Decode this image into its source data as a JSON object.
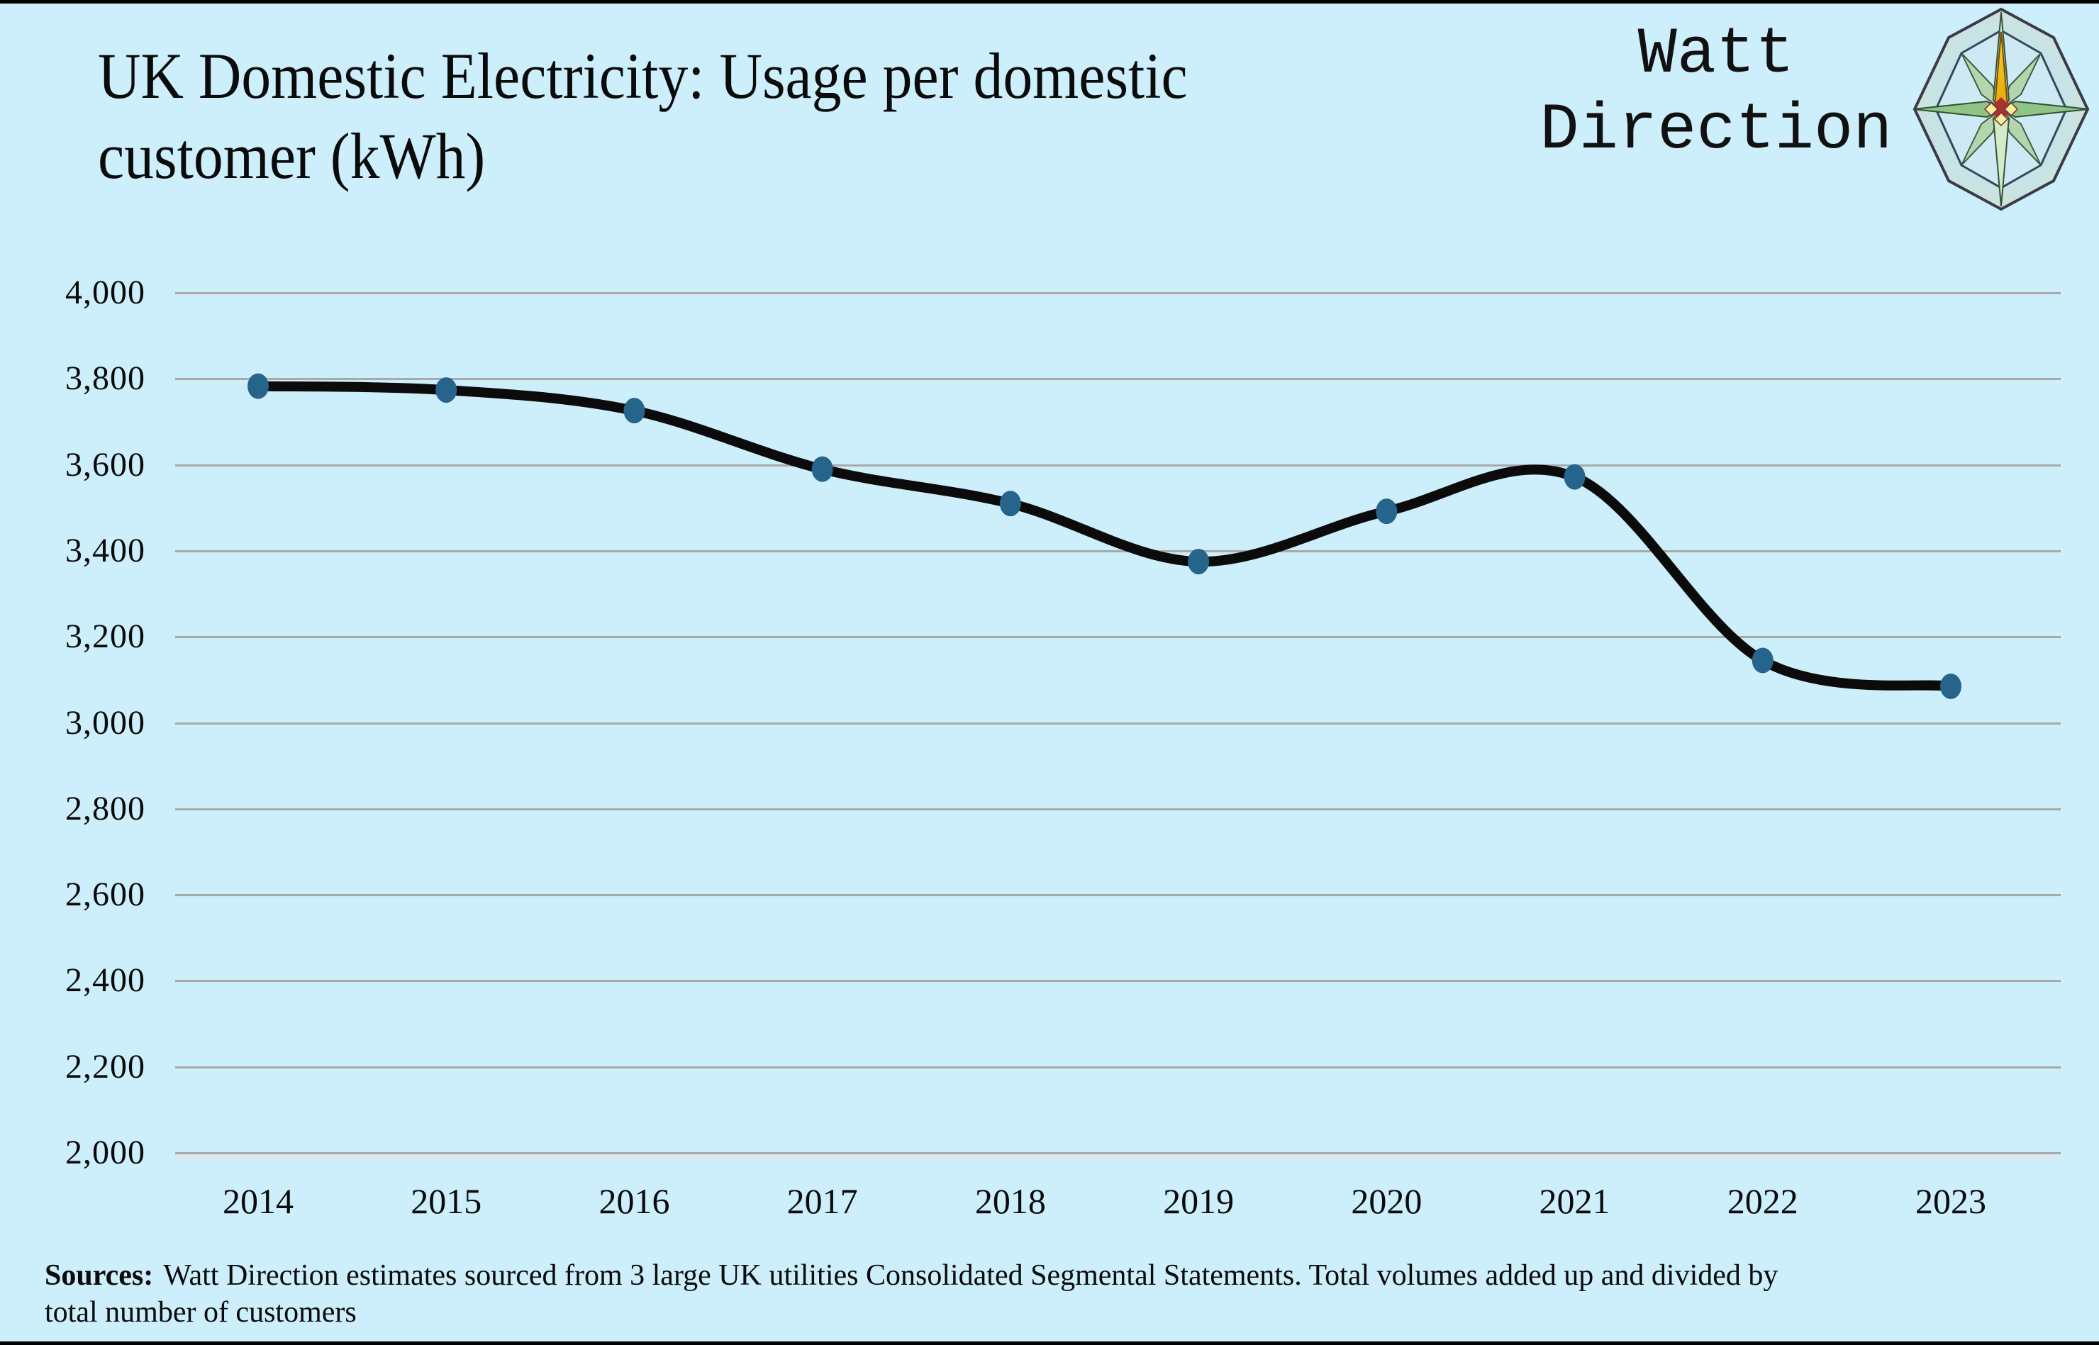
{
  "page": {
    "title_line1": "UK Domestic Electricity: Usage per domestic",
    "title_line2": "customer (kWh)",
    "brand": {
      "line1": "Watt",
      "line2": "Direction",
      "logo_icon": "compass-rose-icon"
    },
    "sources": {
      "label": "Sources:",
      "line1": "Watt Direction estimates sourced from 3 large UK utilities Consolidated Segmental Statements. Total volumes added up and divided by",
      "line2": "total number of customers"
    }
  },
  "chart_data": {
    "type": "line",
    "title": "UK Domestic Electricity: Usage per domestic customer (kWh)",
    "categories": [
      "2014",
      "2015",
      "2016",
      "2017",
      "2018",
      "2019",
      "2020",
      "2021",
      "2022",
      "2023"
    ],
    "series": [
      {
        "name": "Usage per domestic customer (kWh)",
        "values": [
          3783,
          3774,
          3726,
          3590,
          3510,
          3375,
          3492,
          3572,
          3145,
          3085
        ]
      }
    ],
    "ylim": [
      2000,
      4000
    ],
    "ytick_step": 200,
    "ytick_labels": [
      "4,000",
      "3,800",
      "3,600",
      "3,400",
      "3,200",
      "3,000",
      "2,800",
      "2,600",
      "2,400",
      "2,200",
      "2,000"
    ],
    "xlabel": "",
    "ylabel": "",
    "grid": "horizontal",
    "legend": "none",
    "line_color": "#0b0b0b",
    "point_color": "#26648c",
    "gridline_color": "#a9a9a9",
    "background_color": "#cdeefb"
  }
}
